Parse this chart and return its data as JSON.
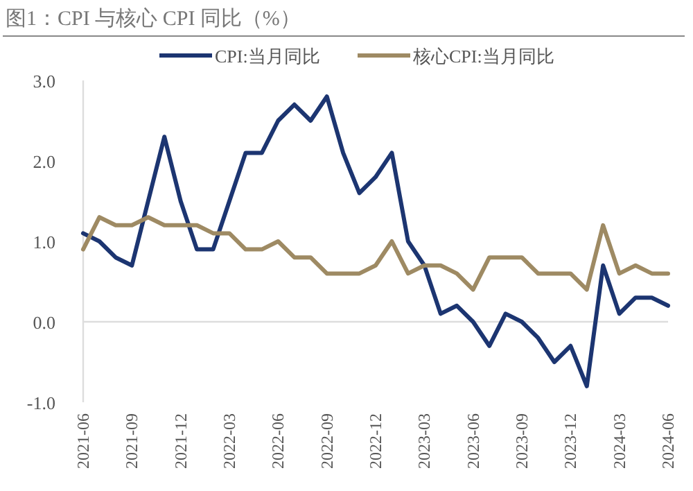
{
  "chart_data": {
    "type": "line",
    "title": "图1：CPI 与核心 CPI 同比（%）",
    "x": [
      "2021-06",
      "2021-07",
      "2021-08",
      "2021-09",
      "2021-10",
      "2021-11",
      "2021-12",
      "2022-01",
      "2022-02",
      "2022-03",
      "2022-04",
      "2022-05",
      "2022-06",
      "2022-07",
      "2022-08",
      "2022-09",
      "2022-10",
      "2022-11",
      "2022-12",
      "2023-01",
      "2023-02",
      "2023-03",
      "2023-04",
      "2023-05",
      "2023-06",
      "2023-07",
      "2023-08",
      "2023-09",
      "2023-10",
      "2023-11",
      "2023-12",
      "2024-01",
      "2024-02",
      "2024-03",
      "2024-04",
      "2024-05",
      "2024-06"
    ],
    "series": [
      {
        "name": "CPI:当月同比",
        "color": "#1c3571",
        "values": [
          1.1,
          1.0,
          0.8,
          0.7,
          1.5,
          2.3,
          1.5,
          0.9,
          0.9,
          1.5,
          2.1,
          2.1,
          2.5,
          2.7,
          2.5,
          2.8,
          2.1,
          1.6,
          1.8,
          2.1,
          1.0,
          0.7,
          0.1,
          0.2,
          0.0,
          -0.3,
          0.1,
          0.0,
          -0.2,
          -0.5,
          -0.3,
          -0.8,
          0.7,
          0.1,
          0.3,
          0.3,
          0.2
        ]
      },
      {
        "name": "核心CPI:当月同比",
        "color": "#9e8a63",
        "values": [
          0.9,
          1.3,
          1.2,
          1.2,
          1.3,
          1.2,
          1.2,
          1.2,
          1.1,
          1.1,
          0.9,
          0.9,
          1.0,
          0.8,
          0.8,
          0.6,
          0.6,
          0.6,
          0.7,
          1.0,
          0.6,
          0.7,
          0.7,
          0.6,
          0.4,
          0.8,
          0.8,
          0.8,
          0.6,
          0.6,
          0.6,
          0.4,
          1.2,
          0.6,
          0.7,
          0.6,
          0.6
        ]
      }
    ],
    "xlim": [
      "2021-06",
      "2024-06"
    ],
    "xticks": [
      "2021-06",
      "2021-09",
      "2021-12",
      "2022-03",
      "2022-06",
      "2022-09",
      "2022-12",
      "2023-03",
      "2023-06",
      "2023-09",
      "2023-12",
      "2024-03",
      "2024-06"
    ],
    "ylim": [
      -1.0,
      3.0
    ],
    "yticks": [
      {
        "value": -1.0,
        "label": "-1.0"
      },
      {
        "value": 0.0,
        "label": "0.0"
      },
      {
        "value": 1.0,
        "label": "1.0"
      },
      {
        "value": 2.0,
        "label": "2.0"
      },
      {
        "value": 3.0,
        "label": "3.0"
      }
    ],
    "ref_lines": [
      {
        "axis": "y",
        "value": 0,
        "color": "#dddddd"
      }
    ],
    "grid": false,
    "legend": "top",
    "marker": "none",
    "line_style": "solid"
  }
}
